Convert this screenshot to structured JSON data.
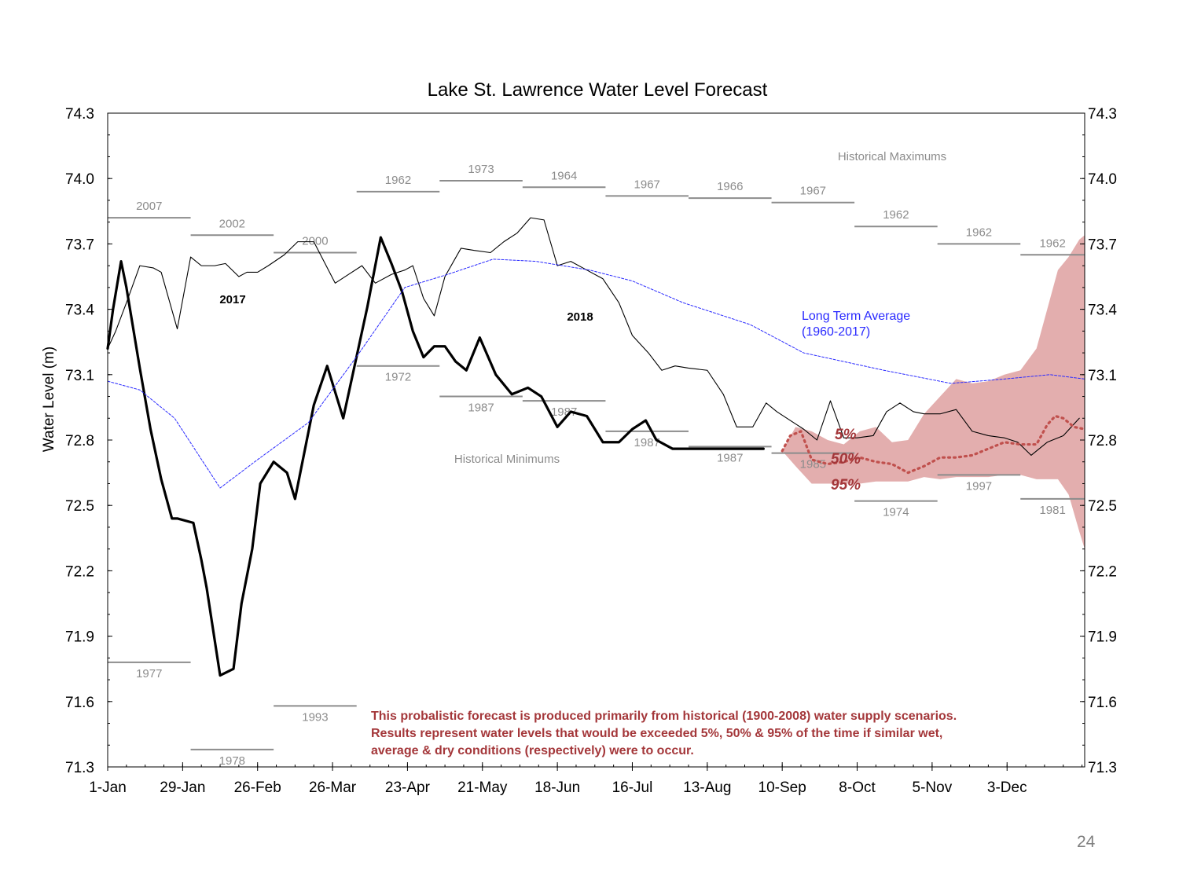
{
  "page_number": "24",
  "chart_data": {
    "type": "line",
    "title": "Lake St. Lawrence  Water Level  Forecast",
    "ylabel": "Water Level (m)",
    "xlabel": "",
    "ylim": [
      71.3,
      74.3
    ],
    "xlim_days": [
      1,
      366
    ],
    "y_ticks": [
      "74.3",
      "74.0",
      "73.7",
      "73.4",
      "73.1",
      "72.8",
      "72.5",
      "72.2",
      "71.9",
      "71.6",
      "71.3"
    ],
    "x_ticks": [
      {
        "label": "1-Jan",
        "day": 1
      },
      {
        "label": "29-Jan",
        "day": 29
      },
      {
        "label": "26-Feb",
        "day": 57
      },
      {
        "label": "26-Mar",
        "day": 85
      },
      {
        "label": "23-Apr",
        "day": 113
      },
      {
        "label": "21-May",
        "day": 141
      },
      {
        "label": "18-Jun",
        "day": 169
      },
      {
        "label": "16-Jul",
        "day": 197
      },
      {
        "label": "13-Aug",
        "day": 225
      },
      {
        "label": "10-Sep",
        "day": 253
      },
      {
        "label": "8-Oct",
        "day": 281
      },
      {
        "label": "5-Nov",
        "day": 309
      },
      {
        "label": "3-Dec",
        "day": 337
      }
    ],
    "series": [
      {
        "name": "2017",
        "color": "#000000",
        "style": "thin",
        "x": [
          1,
          4,
          8,
          13,
          18,
          21,
          27,
          32,
          36,
          41,
          45,
          50,
          53,
          57,
          61,
          67,
          72,
          78,
          86,
          91,
          96,
          101,
          107,
          112,
          115,
          119,
          123,
          127,
          133,
          138,
          144,
          149,
          154,
          159,
          164,
          169,
          174,
          180,
          186,
          192,
          197,
          203,
          208,
          213,
          218,
          225,
          231,
          236,
          242,
          247,
          251,
          256,
          261,
          266,
          271,
          276,
          281,
          287,
          292,
          297,
          302,
          306,
          312,
          318,
          324,
          330,
          336,
          341,
          346,
          352,
          358,
          364
        ],
        "y": [
          73.22,
          73.3,
          73.43,
          73.6,
          73.59,
          73.57,
          73.31,
          73.64,
          73.6,
          73.6,
          73.61,
          73.55,
          73.57,
          73.57,
          73.6,
          73.65,
          73.71,
          73.71,
          73.52,
          73.56,
          73.6,
          73.52,
          73.56,
          73.58,
          73.6,
          73.45,
          73.37,
          73.55,
          73.68,
          73.67,
          73.66,
          73.71,
          73.75,
          73.82,
          73.81,
          73.6,
          73.62,
          73.58,
          73.54,
          73.43,
          73.28,
          73.2,
          73.12,
          73.14,
          73.13,
          73.12,
          73.01,
          72.86,
          72.86,
          72.97,
          72.93,
          72.89,
          72.85,
          72.8,
          72.98,
          72.81,
          72.81,
          72.82,
          72.93,
          72.97,
          72.93,
          72.92,
          72.92,
          72.94,
          72.84,
          72.82,
          72.81,
          72.79,
          72.73,
          72.79,
          72.82,
          72.9
        ]
      },
      {
        "name": "2018",
        "color": "#000000",
        "style": "thick",
        "x": [
          1,
          3,
          6,
          8,
          13,
          17,
          21,
          25,
          27,
          33,
          36,
          38,
          43,
          48,
          51,
          55,
          58,
          63,
          68,
          71,
          78,
          83,
          89,
          95,
          98,
          103,
          107,
          111,
          115,
          119,
          123,
          127,
          131,
          135,
          140,
          146,
          152,
          158,
          163,
          169,
          174,
          180,
          186,
          192,
          197,
          202,
          206,
          212,
          218,
          224,
          230,
          236,
          240,
          246
        ],
        "y": [
          73.22,
          73.4,
          73.62,
          73.5,
          73.13,
          72.85,
          72.62,
          72.44,
          72.44,
          72.42,
          72.25,
          72.12,
          71.72,
          71.75,
          72.05,
          72.3,
          72.6,
          72.7,
          72.65,
          72.53,
          72.96,
          73.14,
          72.9,
          73.24,
          73.41,
          73.73,
          73.61,
          73.48,
          73.3,
          73.18,
          73.23,
          73.23,
          73.16,
          73.12,
          73.27,
          73.1,
          73.01,
          73.04,
          73.0,
          72.86,
          72.93,
          72.91,
          72.79,
          72.79,
          72.85,
          72.89,
          72.8,
          72.76,
          72.76,
          72.76,
          72.76,
          72.76,
          72.76,
          72.76
        ]
      },
      {
        "name": "Long Term Average\n(1960-2017)",
        "color": "#2a2aff",
        "style": "dotted",
        "x": [
          1,
          13,
          26,
          43,
          57,
          76,
          95,
          112,
          128,
          145,
          161,
          181,
          197,
          216,
          241,
          261,
          291,
          316,
          336,
          353,
          366
        ],
        "y": [
          73.07,
          73.03,
          72.9,
          72.58,
          72.71,
          72.88,
          73.2,
          73.5,
          73.56,
          73.63,
          73.62,
          73.58,
          73.53,
          73.43,
          73.33,
          73.2,
          73.12,
          73.06,
          73.08,
          73.1,
          73.08
        ]
      },
      {
        "name": "50%",
        "color": "#c0504d",
        "style": "dotted",
        "x": [
          253,
          256,
          260,
          264,
          270,
          276,
          282,
          288,
          294,
          300,
          306,
          312,
          318,
          324,
          330,
          336,
          342,
          348,
          352,
          355,
          358,
          362,
          366
        ],
        "y": [
          72.75,
          72.82,
          72.84,
          72.71,
          72.69,
          72.7,
          72.72,
          72.7,
          72.69,
          72.65,
          72.68,
          72.72,
          72.72,
          72.73,
          72.76,
          72.79,
          72.78,
          72.78,
          72.87,
          72.91,
          72.9,
          72.86,
          72.85
        ]
      }
    ],
    "forecast_band": {
      "color": "#e3aeae",
      "x": [
        253,
        258,
        264,
        270,
        276,
        282,
        288,
        294,
        300,
        306,
        312,
        318,
        324,
        330,
        336,
        342,
        348,
        352,
        356,
        360,
        364,
        366
      ],
      "upper": [
        72.75,
        72.86,
        72.84,
        72.8,
        72.78,
        72.84,
        72.86,
        72.79,
        72.8,
        72.92,
        73.0,
        73.08,
        73.06,
        73.07,
        73.1,
        73.12,
        73.22,
        73.4,
        73.58,
        73.64,
        73.72,
        73.74
      ],
      "lower": [
        72.75,
        72.68,
        72.6,
        72.6,
        72.6,
        72.6,
        72.61,
        72.61,
        72.61,
        72.63,
        72.62,
        72.63,
        72.63,
        72.63,
        72.64,
        72.64,
        72.62,
        72.62,
        72.62,
        72.55,
        72.38,
        72.3
      ]
    },
    "historical_maximums": {
      "label": "Historical Maximums",
      "segments": [
        {
          "year": "2007",
          "x0": 1,
          "x1": 32,
          "y": 73.82
        },
        {
          "year": "2002",
          "x0": 32,
          "x1": 63,
          "y": 73.74
        },
        {
          "year": "2000",
          "x0": 63,
          "x1": 94,
          "y": 73.66
        },
        {
          "year": "1962",
          "x0": 94,
          "x1": 125,
          "y": 73.94
        },
        {
          "year": "1973",
          "x0": 125,
          "x1": 156,
          "y": 73.99
        },
        {
          "year": "1964",
          "x0": 156,
          "x1": 187,
          "y": 73.96
        },
        {
          "year": "1967",
          "x0": 187,
          "x1": 218,
          "y": 73.92
        },
        {
          "year": "1966",
          "x0": 218,
          "x1": 249,
          "y": 73.91
        },
        {
          "year": "1967",
          "x0": 249,
          "x1": 280,
          "y": 73.89
        },
        {
          "year": "1962",
          "x0": 280,
          "x1": 311,
          "y": 73.78
        },
        {
          "year": "1962",
          "x0": 311,
          "x1": 342,
          "y": 73.7
        },
        {
          "year": "1962",
          "x0": 342,
          "x1": 366,
          "y": 73.65
        }
      ]
    },
    "historical_minimums": {
      "label": "Historical Minimums",
      "segments": [
        {
          "year": "1977",
          "x0": 1,
          "x1": 32,
          "y": 71.78
        },
        {
          "year": "1978",
          "x0": 32,
          "x1": 63,
          "y": 71.38
        },
        {
          "year": "1993",
          "x0": 63,
          "x1": 94,
          "y": 71.58
        },
        {
          "year": "1972",
          "x0": 94,
          "x1": 125,
          "y": 73.14
        },
        {
          "year": "1987",
          "x0": 125,
          "x1": 156,
          "y": 73.0
        },
        {
          "year": "1987",
          "x0": 156,
          "x1": 187,
          "y": 72.98
        },
        {
          "year": "1987",
          "x0": 187,
          "x1": 218,
          "y": 72.84
        },
        {
          "year": "1987",
          "x0": 218,
          "x1": 249,
          "y": 72.77
        },
        {
          "year": "1985",
          "x0": 249,
          "x1": 280,
          "y": 72.74
        },
        {
          "year": "1974",
          "x0": 280,
          "x1": 311,
          "y": 72.52
        },
        {
          "year": "1997",
          "x0": 311,
          "x1": 342,
          "y": 72.64
        },
        {
          "year": "1981",
          "x0": 342,
          "x1": 366,
          "y": 72.53
        }
      ]
    },
    "annotations": {
      "label_2017": "2017",
      "label_2018": "2018",
      "lta_line1": "Long Term Average",
      "lta_line2": "(1960-2017)",
      "pct_5": "5%",
      "pct_50": "50%",
      "pct_95": "95%",
      "note_line1": "This probalistic forecast is produced primarily  from historical  (1900-2008)  water supply  scenarios.",
      "note_line2": "Results represent water levels that would be exceeded 5%, 50% & 95% of the time if similar wet,",
      "note_line3": "average & dry conditions (respectively) were to occur."
    }
  }
}
